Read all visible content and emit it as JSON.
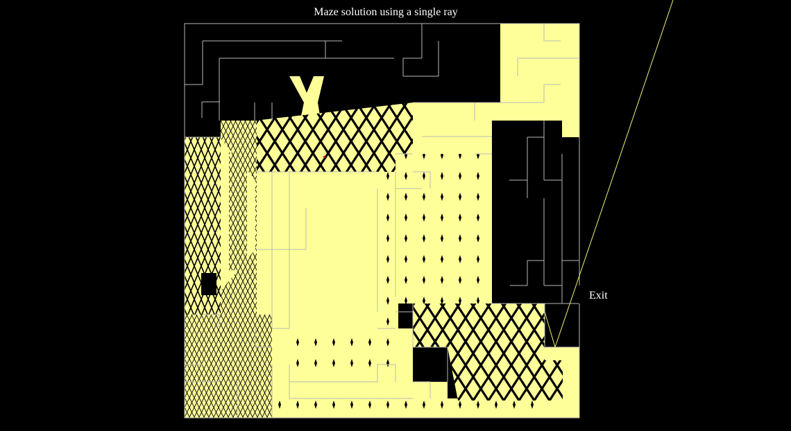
{
  "figure": {
    "title": "Maze solution using a single ray",
    "exit_label": "Exit",
    "colors": {
      "background": "#000000",
      "illuminated": "#ffff99",
      "ray": "#f6f07a",
      "walls": "#b8b8b8",
      "start_marker": "#e0102a",
      "text": "#ffffff"
    }
  }
}
